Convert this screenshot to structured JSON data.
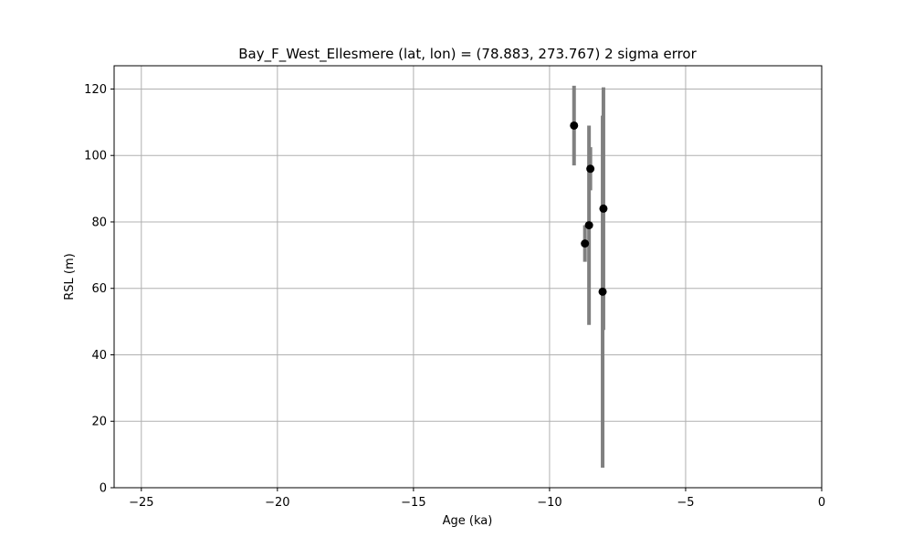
{
  "chart_data": {
    "type": "scatter",
    "title": "Bay_F_West_Ellesmere (lat, lon) = (78.883, 273.767)  2 sigma error",
    "xlabel": "Age (ka)",
    "ylabel": "RSL (m)",
    "xlim": [
      -26,
      0
    ],
    "ylim": [
      0,
      127
    ],
    "xticks": [
      -25,
      -20,
      -15,
      -10,
      -5,
      0
    ],
    "xtick_labels": [
      "−25",
      "−20",
      "−15",
      "−10",
      "−5",
      "0"
    ],
    "yticks": [
      0,
      20,
      40,
      60,
      80,
      100,
      120
    ],
    "ytick_labels": [
      "0",
      "20",
      "40",
      "60",
      "80",
      "100",
      "120"
    ],
    "grid": true,
    "colors": {
      "error_bar": "#808080",
      "point": "#000000",
      "grid": "#b0b0b0"
    },
    "points": [
      {
        "x": -9.1,
        "y": 109.0,
        "y_low": 97.0,
        "y_high": 121.0
      },
      {
        "x": -8.5,
        "y": 96.0,
        "y_low": 89.5,
        "y_high": 102.5
      },
      {
        "x": -8.02,
        "y": 84.0,
        "y_low": 47.5,
        "y_high": 120.5
      },
      {
        "x": -8.55,
        "y": 79.0,
        "y_low": 49.0,
        "y_high": 109.0
      },
      {
        "x": -8.7,
        "y": 73.5,
        "y_low": 68.0,
        "y_high": 79.0
      },
      {
        "x": -8.05,
        "y": 59.0,
        "y_low": 6.0,
        "y_high": 112.0
      }
    ]
  }
}
